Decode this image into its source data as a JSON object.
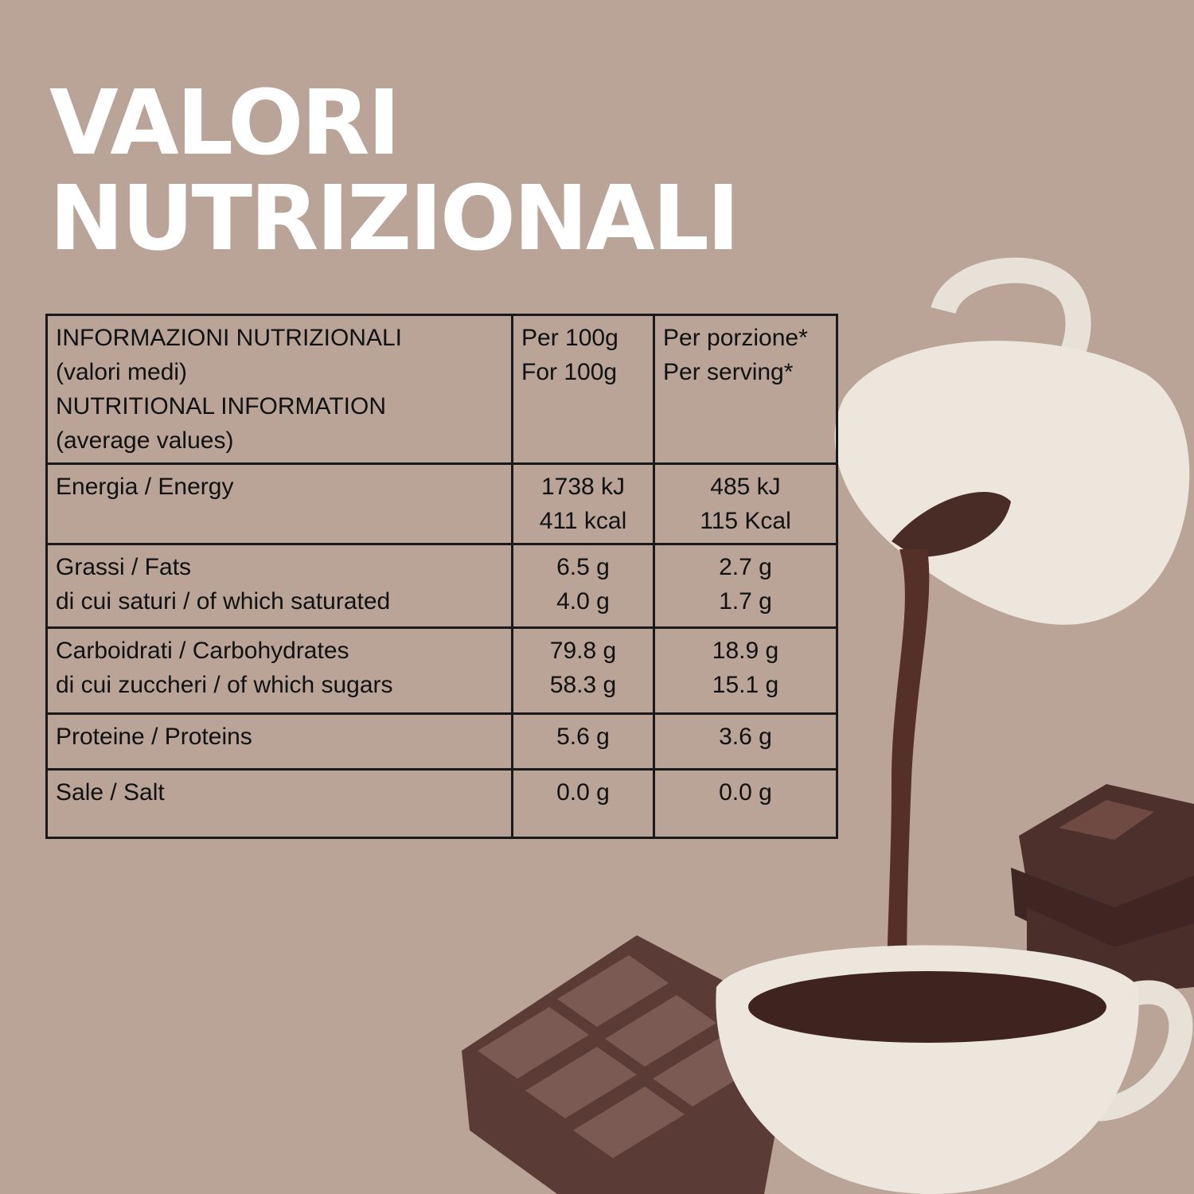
{
  "title": {
    "line1": "VALORI",
    "line2": "NUTRIZIONALI"
  },
  "table": {
    "header": {
      "label": [
        "INFORMAZIONI NUTRIZIONALI",
        "(valori medi)",
        "NUTRITIONAL INFORMATION",
        "(average values)"
      ],
      "per100": [
        "Per 100g",
        "For 100g"
      ],
      "perServing": [
        "Per porzione*",
        "Per serving*"
      ]
    },
    "rows": [
      {
        "label": [
          "Energia / Energy"
        ],
        "per100": [
          "1738 kJ",
          "411 kcal"
        ],
        "perServing": [
          "485 kJ",
          "115 Kcal"
        ]
      },
      {
        "label": [
          "Grassi / Fats",
          "di cui saturi / of which saturated"
        ],
        "per100": [
          "6.5 g",
          "4.0 g"
        ],
        "perServing": [
          "2.7 g",
          "1.7 g"
        ]
      },
      {
        "label": [
          "Carboidrati / Carbohydrates",
          "di cui zuccheri / of which sugars"
        ],
        "per100": [
          "79.8 g",
          "58.3 g"
        ],
        "perServing": [
          "18.9 g",
          "15.1 g"
        ]
      },
      {
        "label": [
          "Proteine / Proteins"
        ],
        "per100": [
          "5.6 g"
        ],
        "perServing": [
          "3.6 g"
        ]
      },
      {
        "label": [
          "Sale / Salt"
        ],
        "per100": [
          "0.0 g"
        ],
        "perServing": [
          "0.0 g"
        ]
      }
    ]
  },
  "colors": {
    "background": "#b9a497",
    "title": "#ffffff",
    "chocolate": "#5a3b33",
    "cream": "#efe9e1"
  }
}
